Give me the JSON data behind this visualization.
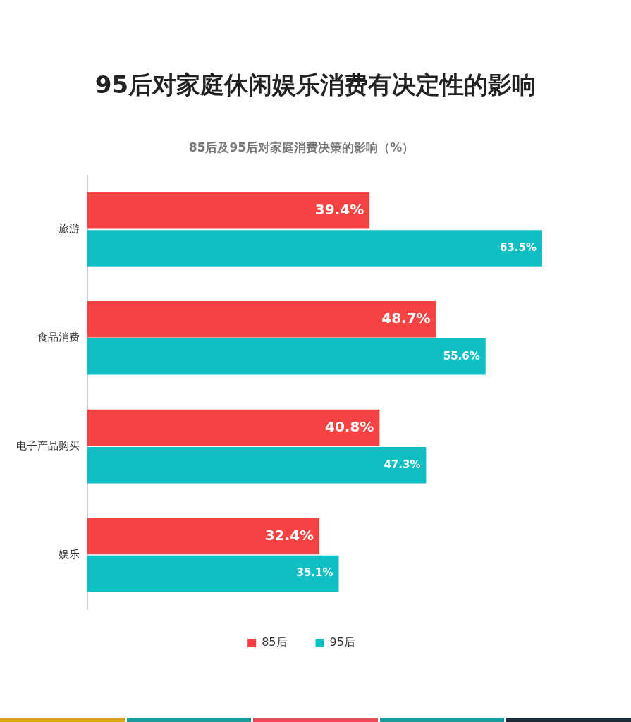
{
  "chart_data": {
    "type": "bar",
    "orientation": "horizontal",
    "title": "95后对家庭休闲娱乐消费有决定性的影响",
    "subtitle": "85后及95后对家庭消费决策的影响（%）",
    "categories": [
      "旅游",
      "食品消费",
      "电子产品购买",
      "娱乐"
    ],
    "series": [
      {
        "name": "85后",
        "color": "#f54343",
        "values": [
          39.4,
          48.7,
          40.8,
          32.4
        ],
        "value_labels": [
          "39.4%",
          "48.7%",
          "40.8%",
          "32.4%"
        ]
      },
      {
        "name": "95后",
        "color": "#10bfc4",
        "values": [
          63.5,
          55.6,
          47.3,
          35.1
        ],
        "value_labels": [
          "63.5%",
          "55.6%",
          "47.3%",
          "35.1%"
        ]
      }
    ],
    "legend": "bottom"
  }
}
